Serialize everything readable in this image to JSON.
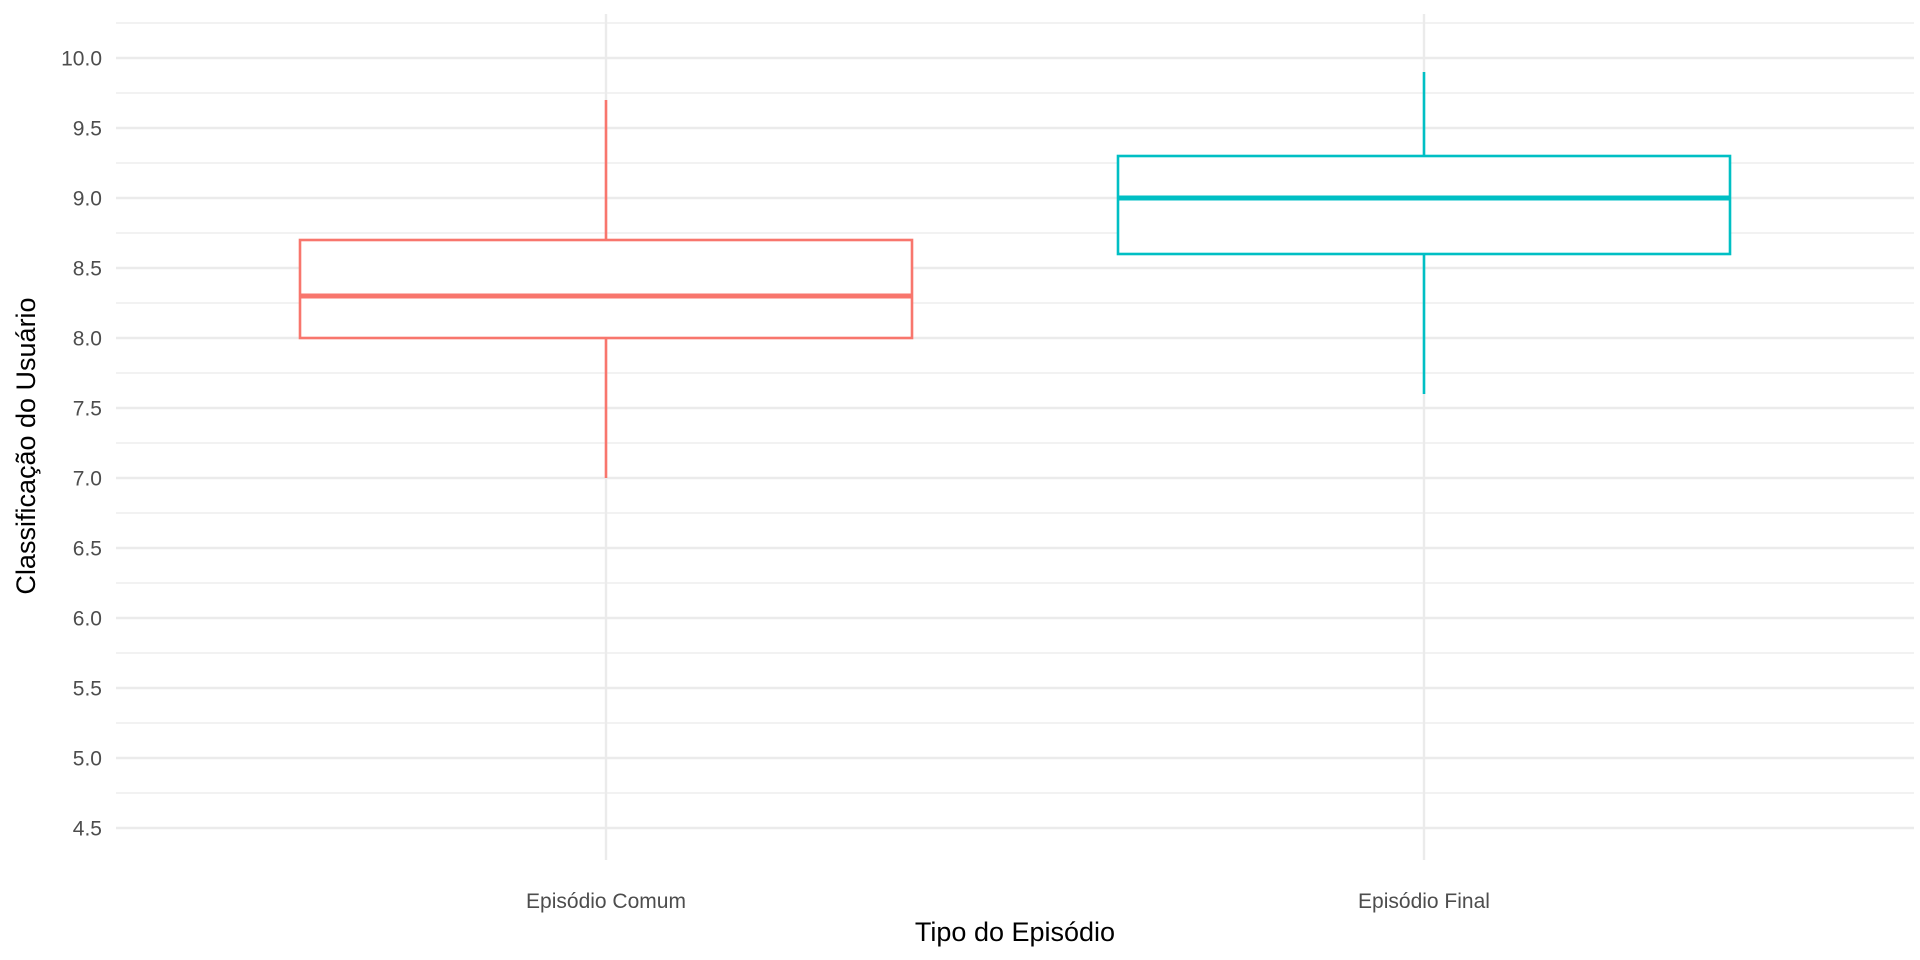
{
  "chart_data": {
    "type": "boxplot",
    "title": "",
    "xlabel": "Tipo do Episódio",
    "ylabel": "Classificação do Usuário",
    "categories": [
      "Episódio Comum",
      "Episódio Final"
    ],
    "ylim": [
      4.2,
      10.25
    ],
    "yticks": [
      "4.5",
      "5.0",
      "5.5",
      "6.0",
      "6.5",
      "7.0",
      "7.5",
      "8.0",
      "8.5",
      "9.0",
      "9.5",
      "10.0"
    ],
    "grid": true,
    "legend": "none",
    "series": [
      {
        "category": "Episódio Comum",
        "color": "#F8766D",
        "whisker_low": 7.0,
        "q1": 8.0,
        "median": 8.3,
        "q3": 8.7,
        "whisker_high": 9.7
      },
      {
        "category": "Episódio Final",
        "color": "#00BFC4",
        "whisker_low": 7.6,
        "q1": 8.6,
        "median": 9.0,
        "q3": 9.3,
        "whisker_high": 9.9
      }
    ]
  }
}
